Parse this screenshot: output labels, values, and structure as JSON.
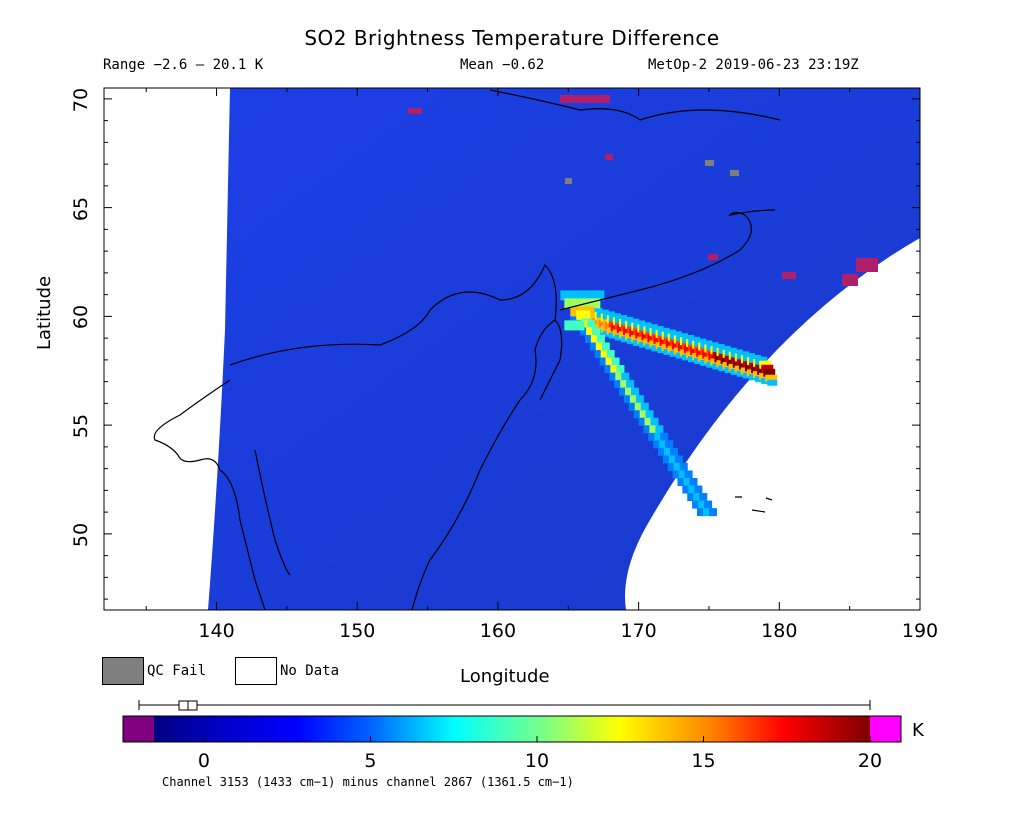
{
  "header": {
    "title": "SO2 Brightness Temperature Difference",
    "range": "Range −2.6 – 20.1 K",
    "mean": "Mean −0.62",
    "satellite_time": "MetOp-2 2019-06-23 23:19Z"
  },
  "legend": {
    "qc_fail": "QC Fail",
    "no_data": "No Data"
  },
  "axes": {
    "xlabel": "Longitude",
    "ylabel": "Latitude",
    "xticks": [
      "140",
      "150",
      "160",
      "170",
      "180",
      "190"
    ],
    "yticks": [
      "50",
      "55",
      "60",
      "65",
      "70"
    ]
  },
  "colorbar": {
    "unit": "K",
    "ticks": [
      "0",
      "5",
      "10",
      "15",
      "20"
    ],
    "caption": "Channel 3153 (1433 cm−1) minus channel 2867 (1361.5 cm−1)",
    "under_color": "#800080",
    "over_color": "#ff00ff",
    "background_color": "#1a40e0"
  },
  "chart_data": {
    "type": "heatmap",
    "title": "SO2 Brightness Temperature Difference",
    "xlabel": "Longitude",
    "ylabel": "Latitude",
    "xlim": [
      132,
      190
    ],
    "ylim": [
      46.5,
      70.5
    ],
    "color_range": [
      -3,
      21
    ],
    "plume": {
      "peak_value": 20.1,
      "peak_location": [
        179,
        57.5
      ],
      "source": [
        166,
        60
      ],
      "branches": [
        {
          "from": [
            166,
            60
          ],
          "to": [
            179,
            57.5
          ]
        },
        {
          "from": [
            166,
            60
          ],
          "to": [
            175,
            51
          ]
        }
      ]
    }
  }
}
